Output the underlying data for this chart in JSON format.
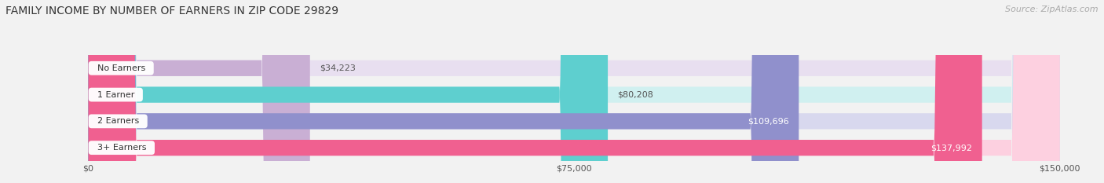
{
  "title": "FAMILY INCOME BY NUMBER OF EARNERS IN ZIP CODE 29829",
  "source": "Source: ZipAtlas.com",
  "categories": [
    "No Earners",
    "1 Earner",
    "2 Earners",
    "3+ Earners"
  ],
  "values": [
    34223,
    80208,
    109696,
    137992
  ],
  "bar_colors": [
    "#c9afd4",
    "#5ecfcf",
    "#9090cc",
    "#f06090"
  ],
  "bar_bg_colors": [
    "#e8dff0",
    "#d0f0f0",
    "#d8d8ee",
    "#fdd0e0"
  ],
  "value_labels": [
    "$34,223",
    "$80,208",
    "$109,696",
    "$137,992"
  ],
  "xlim": [
    0,
    150000
  ],
  "xtick_values": [
    0,
    75000,
    150000
  ],
  "xtick_labels": [
    "$0",
    "$75,000",
    "$150,000"
  ],
  "background_color": "#f2f2f2",
  "title_fontsize": 10,
  "source_fontsize": 8
}
